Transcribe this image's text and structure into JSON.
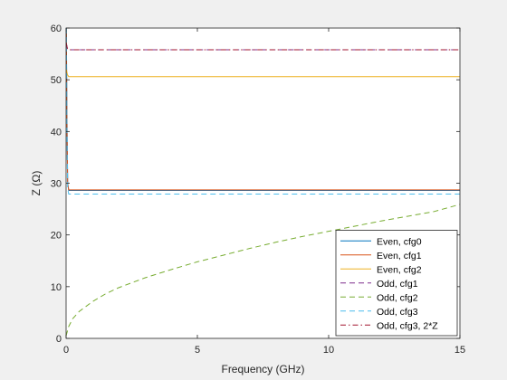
{
  "chart_data": {
    "type": "line",
    "xlabel": "Frequency (GHz)",
    "ylabel": "Z (Ω)",
    "xlim": [
      0,
      15
    ],
    "ylim": [
      0,
      60
    ],
    "xticks": [
      0,
      5,
      10,
      15
    ],
    "yticks": [
      0,
      10,
      20,
      30,
      40,
      50,
      60
    ],
    "grid": false,
    "legend_position": "bottom-right",
    "series": [
      {
        "name": "Even, cfg0",
        "color": "#0072BD",
        "dash": "solid",
        "x": [
          0.01,
          0.03,
          0.06,
          0.1,
          15
        ],
        "y": [
          60,
          45,
          30,
          28.6,
          28.6
        ]
      },
      {
        "name": "Even, cfg1",
        "color": "#D95319",
        "dash": "solid",
        "x": [
          0.01,
          0.03,
          0.06,
          0.1,
          15
        ],
        "y": [
          60,
          42,
          30,
          28.7,
          28.7
        ]
      },
      {
        "name": "Even, cfg2",
        "color": "#EDB120",
        "dash": "solid",
        "x": [
          0.01,
          0.05,
          0.1,
          15
        ],
        "y": [
          52,
          51,
          50.6,
          50.6
        ]
      },
      {
        "name": "Odd, cfg1",
        "color": "#7E2F8E",
        "dash": "dash",
        "x": [
          0.01,
          0.05,
          0.1,
          15
        ],
        "y": [
          57,
          56,
          55.8,
          55.8
        ]
      },
      {
        "name": "Odd, cfg2",
        "color": "#77AC30",
        "dash": "dash",
        "x": [
          0,
          0.1,
          0.25,
          0.5,
          1,
          1.5,
          2,
          3,
          4,
          5,
          6,
          7,
          8,
          9,
          10,
          11,
          12,
          13,
          14,
          15
        ],
        "y": [
          0.5,
          2.3,
          3.8,
          5.2,
          7.1,
          8.6,
          9.8,
          11.7,
          13.3,
          14.8,
          16.1,
          17.4,
          18.6,
          19.7,
          20.7,
          21.7,
          22.7,
          23.6,
          24.5,
          25.9
        ]
      },
      {
        "name": "Odd, cfg3",
        "color": "#4DBEEE",
        "dash": "dash",
        "x": [
          0.01,
          0.03,
          0.06,
          0.1,
          15
        ],
        "y": [
          60,
          40,
          29,
          27.9,
          27.9
        ]
      },
      {
        "name": "Odd, cfg3, 2*Z",
        "color": "#A2142F",
        "dash": "dashdot",
        "x": [
          0.01,
          0.05,
          0.1,
          15
        ],
        "y": [
          57,
          56,
          55.8,
          55.8
        ]
      }
    ]
  }
}
